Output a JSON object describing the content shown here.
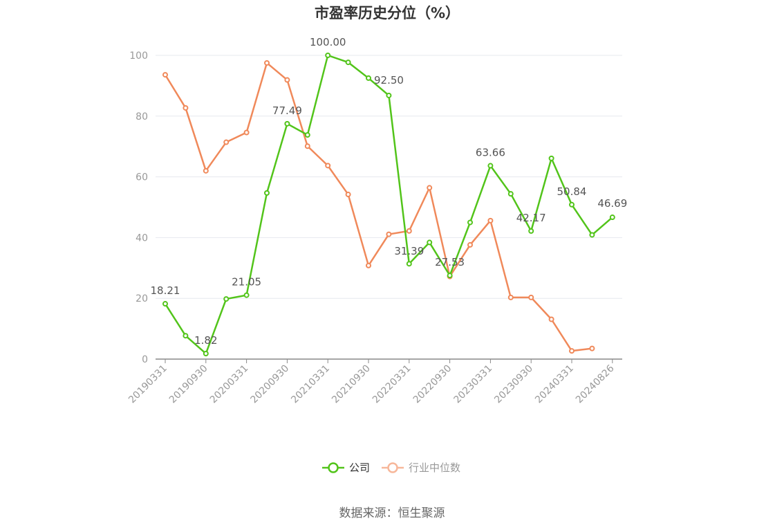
{
  "chart_data": {
    "type": "line",
    "title": "市盈率历史分位（%）",
    "xlabel": "",
    "ylabel": "",
    "ylim": [
      0,
      100
    ],
    "yticks": [
      0,
      20,
      40,
      60,
      80,
      100
    ],
    "x_tick_labels": [
      "20190331",
      "20190930",
      "20200331",
      "20200930",
      "20210331",
      "20210930",
      "20220331",
      "20220930",
      "20230331",
      "20230930",
      "20240331",
      "20240826"
    ],
    "series": [
      {
        "name": "公司",
        "color": "#52c41a",
        "values": [
          18.21,
          7.7,
          1.82,
          19.8,
          21.05,
          54.7,
          77.49,
          73.8,
          100.0,
          97.7,
          92.5,
          86.8,
          31.39,
          38.4,
          27.53,
          45.0,
          63.66,
          54.4,
          42.17,
          66.1,
          50.84,
          40.9,
          46.69
        ]
      },
      {
        "name": "行业中位数",
        "color": "#f0895a",
        "values": [
          93.6,
          82.7,
          62.0,
          71.4,
          74.6,
          97.5,
          91.9,
          70.1,
          63.7,
          54.2,
          30.8,
          41.1,
          42.2,
          56.4,
          27.2,
          37.6,
          45.6,
          20.3,
          20.3,
          13.1,
          2.7,
          3.5,
          null
        ]
      }
    ],
    "data_labels": [
      {
        "index": 0,
        "text": "18.21"
      },
      {
        "index": 2,
        "text": "1.82"
      },
      {
        "index": 4,
        "text": "21.05"
      },
      {
        "index": 6,
        "text": "77.49"
      },
      {
        "index": 8,
        "text": "100.00"
      },
      {
        "index": 10,
        "text": "92.50"
      },
      {
        "index": 12,
        "text": "31.39"
      },
      {
        "index": 14,
        "text": "27.53"
      },
      {
        "index": 16,
        "text": "63.66"
      },
      {
        "index": 18,
        "text": "42.17"
      },
      {
        "index": 20,
        "text": "50.84"
      },
      {
        "index": 22,
        "text": "46.69"
      }
    ],
    "grid": true,
    "legend_position": "bottom-center"
  },
  "source": "数据来源：恒生聚源"
}
